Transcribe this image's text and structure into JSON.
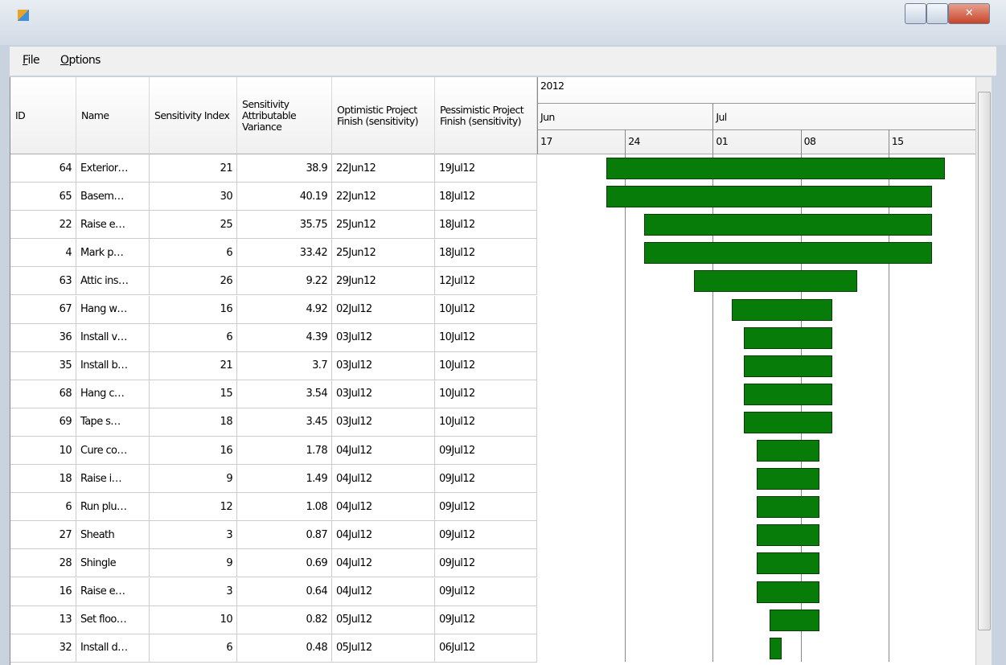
{
  "window": {
    "menu": [
      "File",
      "Options"
    ]
  },
  "table": {
    "columns": [
      "ID",
      "Name",
      "Sensitivity Index",
      "Sensitivity Attributable Variance",
      "Optimistic Project Finish (sensitivity)",
      "Pessimistic Project Finish (sensitivity)"
    ],
    "rows": [
      [
        64,
        "Exterior…",
        21,
        38.9,
        "22Jun12",
        "19Jul12"
      ],
      [
        65,
        "Basem…",
        30,
        40.19,
        "22Jun12",
        "18Jul12"
      ],
      [
        22,
        "Raise e…",
        25,
        35.75,
        "25Jun12",
        "18Jul12"
      ],
      [
        4,
        "Mark p…",
        6,
        33.42,
        "25Jun12",
        "18Jul12"
      ],
      [
        63,
        "Attic ins…",
        26,
        9.22,
        "29Jun12",
        "12Jul12"
      ],
      [
        67,
        "Hang w…",
        16,
        4.92,
        "02Jul12",
        "10Jul12"
      ],
      [
        36,
        "Install v…",
        6,
        4.39,
        "03Jul12",
        "10Jul12"
      ],
      [
        35,
        "Install b…",
        21,
        3.7,
        "03Jul12",
        "10Jul12"
      ],
      [
        68,
        "Hang c…",
        15,
        3.54,
        "03Jul12",
        "10Jul12"
      ],
      [
        69,
        "Tape s…",
        18,
        3.45,
        "03Jul12",
        "10Jul12"
      ],
      [
        10,
        "Cure co…",
        16,
        1.78,
        "04Jul12",
        "09Jul12"
      ],
      [
        18,
        "Raise i…",
        9,
        1.49,
        "04Jul12",
        "09Jul12"
      ],
      [
        6,
        "Run plu…",
        12,
        1.08,
        "04Jul12",
        "09Jul12"
      ],
      [
        27,
        "Sheath",
        3,
        0.87,
        "04Jul12",
        "09Jul12"
      ],
      [
        28,
        "Shingle",
        9,
        0.69,
        "04Jul12",
        "09Jul12"
      ],
      [
        16,
        "Raise e…",
        3,
        0.64,
        "04Jul12",
        "09Jul12"
      ],
      [
        13,
        "Set floo…",
        10,
        0.82,
        "05Jul12",
        "09Jul12"
      ],
      [
        32,
        "Install d…",
        6,
        0.48,
        "05Jul12",
        "06Jul12"
      ]
    ]
  },
  "timeline": {
    "year": "2012",
    "months": [
      "Jun",
      "Jul"
    ],
    "weeks": [
      "17",
      "24",
      "01",
      "08",
      "15"
    ]
  }
}
